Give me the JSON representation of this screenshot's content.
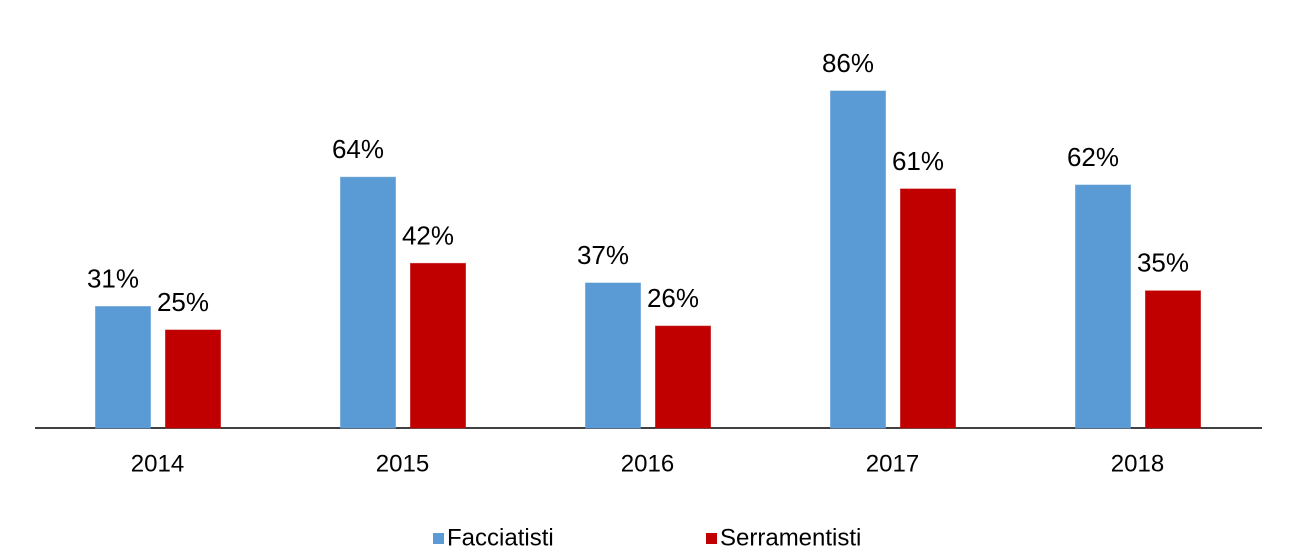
{
  "chart_data": {
    "type": "bar",
    "categories": [
      "2014",
      "2015",
      "2016",
      "2017",
      "2018"
    ],
    "series": [
      {
        "name": "Facciatisti",
        "color": "#5b9bd5",
        "values": [
          31,
          64,
          37,
          86,
          62
        ],
        "value_labels": [
          "31%",
          "64%",
          "37%",
          "86%",
          "62%"
        ]
      },
      {
        "name": "Serramentisti",
        "color": "#c00000",
        "values": [
          25,
          42,
          26,
          61,
          35
        ],
        "value_labels": [
          "25%",
          "42%",
          "26%",
          "61%",
          "35%"
        ]
      }
    ]
  }
}
